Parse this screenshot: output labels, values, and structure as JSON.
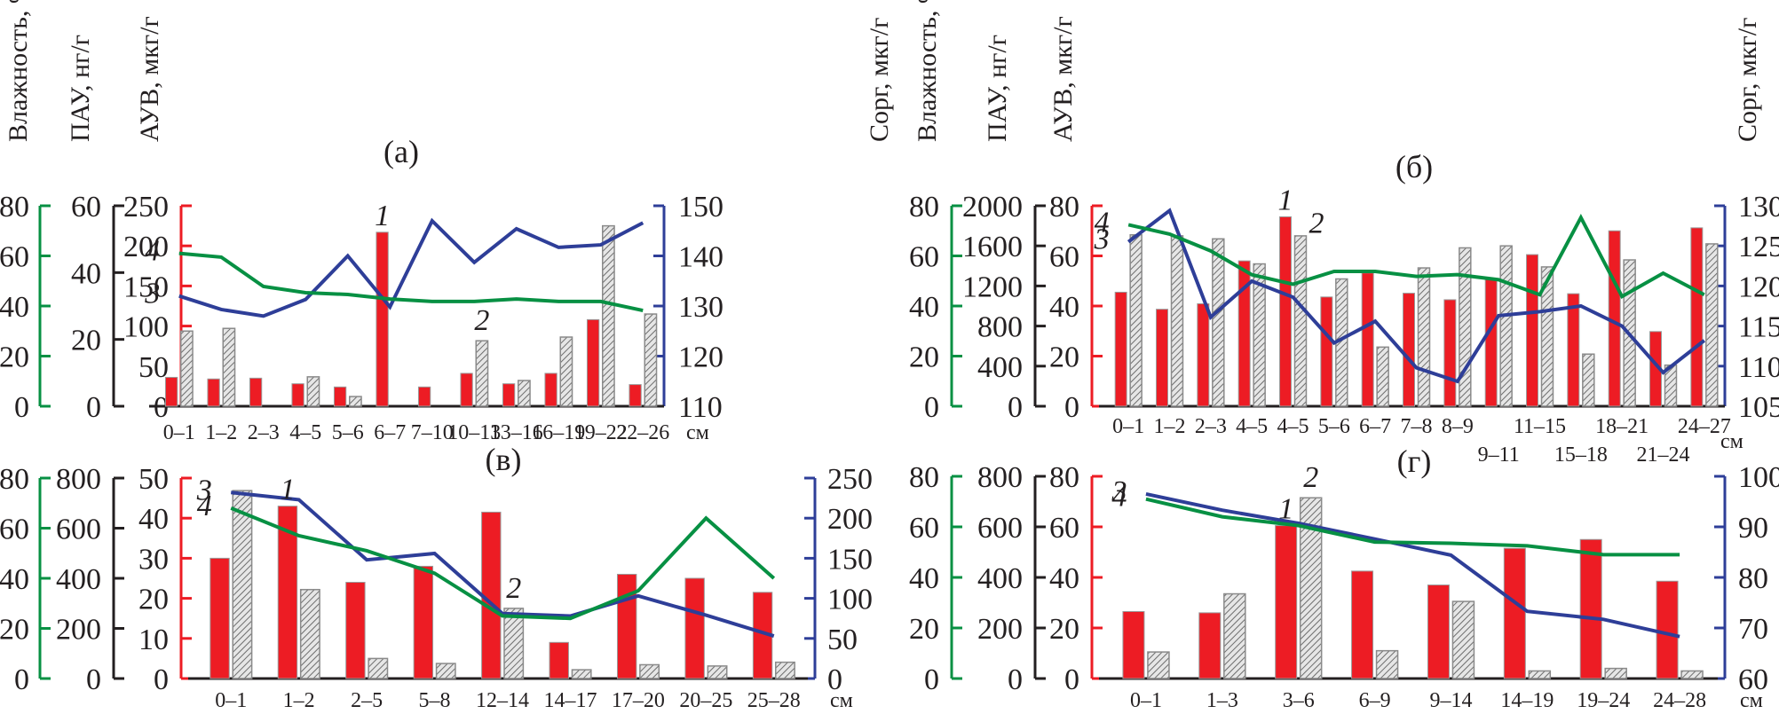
{
  "colors": {
    "moisture": "#079043",
    "pah": "#231f20",
    "auv": "#ed1c24",
    "corg": "#2e3e98",
    "bar_red": "#ed1c24",
    "bar_hatch": "#8a8a8a",
    "baseline": "#231f20"
  },
  "chart_data": [
    {
      "id": "a",
      "type": "bar+line",
      "title": "(а)",
      "xunit": "см",
      "axis_titles": {
        "moisture": "Влажность, %",
        "pah": "ПАУ, нг/г",
        "auv": "АУВ, мкг/г",
        "corg": "Cорг, мкг/г"
      },
      "axes": {
        "moisture": {
          "range": [
            0,
            80
          ],
          "ticks": [
            0,
            20,
            40,
            60,
            80
          ]
        },
        "pah": {
          "range": [
            0,
            60
          ],
          "ticks": [
            0,
            20,
            40,
            60
          ]
        },
        "auv": {
          "range": [
            0,
            250
          ],
          "ticks": [
            0,
            50,
            100,
            150,
            200,
            250
          ]
        },
        "corg": {
          "range": [
            110,
            150
          ],
          "ticks": [
            110,
            120,
            130,
            140,
            150
          ]
        }
      },
      "categories": [
        "0–1",
        "1–2",
        "2–3",
        "4–5",
        "5–6",
        "6–7",
        "7–10",
        "10–13",
        "13–16",
        "16–19",
        "19–22",
        "22–26"
      ],
      "category_rows": [
        0,
        0,
        0,
        0,
        0,
        0,
        0,
        0,
        0,
        0,
        0,
        0
      ],
      "series": [
        {
          "id": "1",
          "name": "АУВ",
          "kind": "bar-solid",
          "axis": "auv",
          "values": [
            36,
            34,
            35,
            28,
            24,
            217,
            24,
            41,
            28,
            41,
            108,
            27
          ]
        },
        {
          "id": "2",
          "name": "ПАУ",
          "kind": "bar-hatch",
          "axis": "pah",
          "values": [
            22.5,
            23.3,
            null,
            8.8,
            2.9,
            null,
            null,
            19.6,
            7.7,
            20.7,
            54,
            27.6
          ]
        },
        {
          "id": "3",
          "name": "Cорг",
          "kind": "line",
          "axis": "corg",
          "values": [
            132,
            129.3,
            128,
            131.3,
            140,
            129.8,
            147,
            138.7,
            145.4,
            141.7,
            142.2,
            146.6
          ]
        },
        {
          "id": "4",
          "name": "Влажность",
          "kind": "line",
          "axis": "moisture",
          "values": [
            61,
            59.5,
            47.8,
            45.3,
            44.6,
            42.8,
            41.8,
            41.8,
            42.8,
            41.8,
            41.8,
            38.2
          ]
        }
      ],
      "series_labels": {
        "1": "1",
        "2": "2",
        "3": "3",
        "4": "4"
      }
    },
    {
      "id": "b",
      "type": "bar+line",
      "title": "(б)",
      "xunit": "см",
      "axis_titles": {
        "moisture": "Влажность, %",
        "pah": "ПАУ, нг/г",
        "auv": "АУВ, мкг/г",
        "corg": "Cорг, мкг/г"
      },
      "axes": {
        "moisture": {
          "range": [
            0,
            80
          ],
          "ticks": [
            0,
            20,
            40,
            60,
            80
          ]
        },
        "pah": {
          "range": [
            0,
            2000
          ],
          "ticks": [
            0,
            400,
            800,
            1200,
            1600,
            2000
          ]
        },
        "auv": {
          "range": [
            0,
            80
          ],
          "ticks": [
            0,
            20,
            40,
            60,
            80
          ]
        },
        "corg": {
          "range": [
            105,
            130
          ],
          "ticks": [
            105,
            110,
            115,
            120,
            125,
            130
          ]
        }
      },
      "categories": [
        "0–1",
        "1–2",
        "2–3",
        "4–5",
        "4–5",
        "5–6",
        "6–7",
        "7–8",
        "8–9",
        "9–11",
        "11–15",
        "15–18",
        "18–21",
        "21–24",
        "24–27"
      ],
      "category_rows": [
        0,
        0,
        0,
        0,
        0,
        0,
        0,
        0,
        0,
        1,
        0,
        1,
        0,
        1,
        0
      ],
      "series": [
        {
          "id": "1",
          "name": "АУВ",
          "kind": "bar-solid",
          "axis": "auv",
          "values": [
            45.5,
            38.7,
            40.9,
            58,
            75.6,
            43.6,
            53.2,
            45.1,
            42.5,
            50.6,
            60.5,
            44.9,
            70,
            29.8,
            71.2
          ]
        },
        {
          "id": "2",
          "name": "ПАУ",
          "kind": "bar-hatch",
          "axis": "pah",
          "values": [
            1710,
            1700,
            1670,
            1420,
            1700,
            1270,
            590,
            1380,
            1580,
            1600,
            1390,
            520,
            1460,
            410,
            1620
          ]
        },
        {
          "id": "3",
          "name": "Cорг",
          "kind": "line",
          "axis": "corg",
          "values": [
            125.5,
            129.4,
            116.1,
            120.6,
            118.6,
            112.9,
            115.6,
            109.8,
            108.1,
            116.3,
            116.8,
            117.5,
            115,
            109.2,
            113.2
          ]
        },
        {
          "id": "4",
          "name": "Влажность",
          "kind": "line",
          "axis": "moisture",
          "values": [
            72.4,
            68.7,
            62,
            52.5,
            48.7,
            53.8,
            53.8,
            51.8,
            52.5,
            50.5,
            44.5,
            75.3,
            43.8,
            53.1,
            44.5
          ]
        }
      ],
      "series_labels": {
        "1": "1",
        "2": "2",
        "3": "3",
        "4": "4"
      }
    },
    {
      "id": "v",
      "type": "bar+line",
      "title": "(в)",
      "xunit": "см",
      "axes": {
        "moisture": {
          "range": [
            0,
            80
          ],
          "ticks": [
            0,
            20,
            40,
            60,
            80
          ]
        },
        "pah": {
          "range": [
            0,
            800
          ],
          "ticks": [
            0,
            200,
            400,
            600,
            800
          ]
        },
        "auv": {
          "range": [
            0,
            50
          ],
          "ticks": [
            0,
            10,
            20,
            30,
            40,
            50
          ]
        },
        "corg": {
          "range": [
            0,
            250
          ],
          "ticks": [
            0,
            50,
            100,
            150,
            200,
            250
          ]
        }
      },
      "categories": [
        "0–1",
        "1–2",
        "2–5",
        "5–8",
        "12–14",
        "14–17",
        "17–20",
        "20–25",
        "25–28"
      ],
      "category_rows": [
        0,
        0,
        0,
        0,
        0,
        0,
        0,
        0,
        0
      ],
      "series": [
        {
          "id": "1",
          "name": "АУВ",
          "kind": "bar-solid",
          "axis": "auv",
          "values": [
            30,
            43,
            24,
            28,
            41.5,
            9,
            26,
            25,
            21.5
          ]
        },
        {
          "id": "2",
          "name": "ПАУ",
          "kind": "bar-hatch",
          "axis": "pah",
          "values": [
            750,
            355,
            80,
            60,
            280,
            35,
            55,
            50,
            65
          ]
        },
        {
          "id": "3",
          "name": "Cорг",
          "kind": "line",
          "axis": "corg",
          "values": [
            232,
            223,
            148,
            156,
            81,
            78,
            103,
            79,
            53
          ]
        },
        {
          "id": "4",
          "name": "Влажность",
          "kind": "line",
          "axis": "moisture",
          "values": [
            68,
            57,
            51,
            42,
            25,
            24,
            35,
            64,
            40
          ]
        }
      ],
      "series_labels": {
        "1": "1",
        "2": "2",
        "3": "3",
        "4": "4"
      }
    },
    {
      "id": "g",
      "type": "bar+line",
      "title": "(г)",
      "xunit": "см",
      "axes": {
        "moisture": {
          "range": [
            0,
            80
          ],
          "ticks": [
            0,
            20,
            40,
            60,
            80
          ]
        },
        "pah": {
          "range": [
            0,
            800
          ],
          "ticks": [
            0,
            200,
            400,
            600,
            800
          ]
        },
        "auv": {
          "range": [
            0,
            80
          ],
          "ticks": [
            0,
            20,
            40,
            60,
            80
          ]
        },
        "corg": {
          "range": [
            60,
            100
          ],
          "ticks": [
            60,
            70,
            80,
            90,
            100
          ]
        }
      },
      "categories": [
        "0–1",
        "1–3",
        "3–6",
        "6–9",
        "9–14",
        "14–19",
        "19–24",
        "24–28"
      ],
      "category_rows": [
        0,
        0,
        0,
        0,
        0,
        0,
        0,
        0
      ],
      "series": [
        {
          "id": "1",
          "name": "АУВ",
          "kind": "bar-solid",
          "axis": "auv",
          "values": [
            26.5,
            26,
            60.5,
            42.5,
            37,
            51.5,
            55,
            38.5
          ]
        },
        {
          "id": "2",
          "name": "ПАУ",
          "kind": "bar-hatch",
          "axis": "pah",
          "values": [
            105,
            335,
            715,
            110,
            305,
            30,
            40,
            30
          ]
        },
        {
          "id": "3",
          "name": "Cорг",
          "kind": "line",
          "axis": "corg",
          "values": [
            96.5,
            93.3,
            90.7,
            87.6,
            84.4,
            73.3,
            71.7,
            68.3
          ]
        },
        {
          "id": "4",
          "name": "Влажность",
          "kind": "line",
          "axis": "moisture",
          "values": [
            71,
            64,
            60.5,
            54,
            53.5,
            52.5,
            49,
            49
          ]
        }
      ],
      "series_labels": {
        "1": "1",
        "2": "2",
        "3": "3",
        "4": "4"
      }
    }
  ]
}
